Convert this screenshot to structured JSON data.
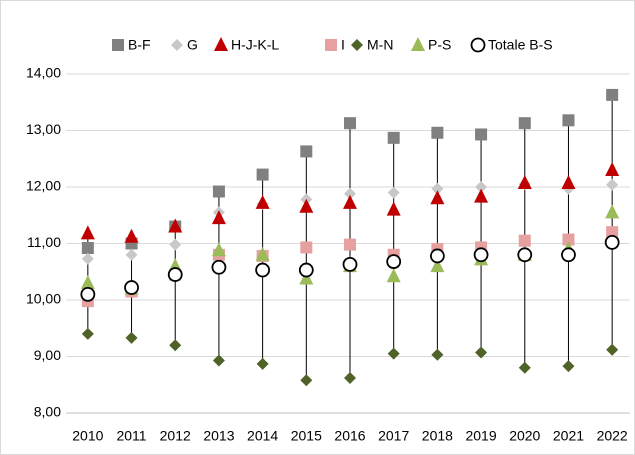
{
  "chart_data": {
    "type": "high-low-markers",
    "categories": [
      "2010",
      "2011",
      "2012",
      "2013",
      "2014",
      "2015",
      "2016",
      "2017",
      "2018",
      "2019",
      "2020",
      "2021",
      "2022"
    ],
    "series": [
      {
        "name": "B-F",
        "color": "#808080",
        "marker": "square",
        "values": [
          10.92,
          11.0,
          11.3,
          11.92,
          12.22,
          12.63,
          13.13,
          12.87,
          12.96,
          12.93,
          13.13,
          13.18,
          13.63
        ]
      },
      {
        "name": "G",
        "color": "#c8c8c8",
        "marker": "diamond",
        "values": [
          10.73,
          10.8,
          10.98,
          11.55,
          11.7,
          11.78,
          11.88,
          11.9,
          11.97,
          12.0,
          12.05,
          11.97,
          12.04
        ]
      },
      {
        "name": "H-J-K-L",
        "color": "#c00000",
        "marker": "triangle",
        "values": [
          11.18,
          11.12,
          11.3,
          11.45,
          11.72,
          11.65,
          11.72,
          11.6,
          11.8,
          11.83,
          12.07,
          12.07,
          12.3
        ]
      },
      {
        "name": "I",
        "color": "#e6a0a0",
        "marker": "square",
        "values": [
          9.98,
          10.15,
          10.45,
          10.8,
          10.78,
          10.93,
          10.98,
          10.8,
          10.9,
          10.93,
          11.05,
          11.07,
          11.2
        ]
      },
      {
        "name": "M-N",
        "color": "#4f6228",
        "marker": "diamond",
        "values": [
          9.4,
          9.33,
          9.2,
          8.93,
          8.87,
          8.58,
          8.62,
          9.05,
          9.03,
          9.07,
          8.8,
          8.83,
          9.12
        ]
      },
      {
        "name": "P-S",
        "color": "#9bbb59",
        "marker": "triangle",
        "values": [
          10.3,
          10.2,
          10.6,
          10.88,
          10.8,
          10.38,
          10.6,
          10.42,
          10.6,
          10.72,
          10.8,
          10.9,
          11.55
        ]
      },
      {
        "name": "Totale B-S",
        "color": "#ffffff",
        "marker": "circle",
        "values": [
          10.1,
          10.22,
          10.45,
          10.58,
          10.53,
          10.53,
          10.63,
          10.68,
          10.78,
          10.8,
          10.8,
          10.8,
          11.02
        ]
      }
    ],
    "ylim": [
      8,
      14
    ],
    "yticks": [
      {
        "value": 8,
        "label": "8,00"
      },
      {
        "value": 9,
        "label": "9,00"
      },
      {
        "value": 10,
        "label": "10,00"
      },
      {
        "value": 11,
        "label": "11,00"
      },
      {
        "value": 12,
        "label": "12,00"
      },
      {
        "value": 13,
        "label": "13,00"
      },
      {
        "value": 14,
        "label": "14,00"
      }
    ],
    "grid": true,
    "legend": "top"
  }
}
